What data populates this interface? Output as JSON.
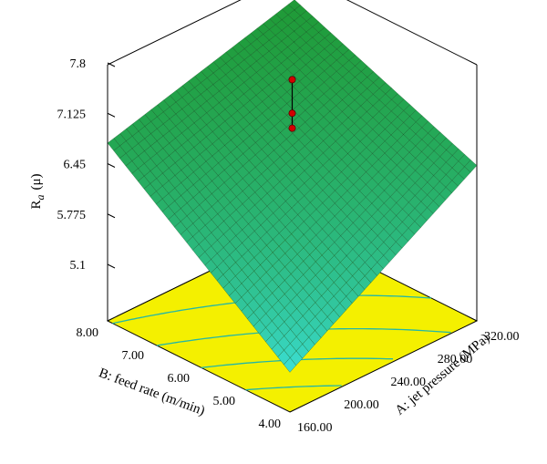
{
  "chart_data": {
    "type": "surface",
    "x_axis": {
      "label": "A: jet pressure (MPa)",
      "ticks": [
        "160.00",
        "200.00",
        "240.00",
        "280.00",
        "320.00"
      ],
      "range": [
        160,
        320
      ]
    },
    "y_axis": {
      "label": "B: feed rate (m/min)",
      "ticks": [
        "4.00",
        "5.00",
        "6.00",
        "7.00",
        "8.00"
      ],
      "range": [
        4,
        8
      ]
    },
    "z_axis": {
      "label_main": "R",
      "label_sub": "a",
      "label_unit": "(μ)",
      "ticks": [
        "5.1",
        "5.775",
        "6.45",
        "7.125",
        "7.8"
      ],
      "range": [
        5.1,
        7.8
      ]
    },
    "surface": {
      "ra_at_A160_B4": 4.9,
      "ra_at_A320_B4": 6.45,
      "ra_at_A160_B8": 6.75,
      "ra_at_A320_B8": 7.45
    },
    "design_points": [
      {
        "A": 240,
        "B": 6,
        "Ra": 7.6
      },
      {
        "A": 240,
        "B": 6,
        "Ra": 7.15
      },
      {
        "A": 240,
        "B": 6,
        "Ra": 6.95
      }
    ],
    "colors": {
      "surface_high": "#1f9a36",
      "surface_low": "#3ee6e6",
      "mesh": "#0b3a14",
      "floor": "#f4f000",
      "contour": "#24b7a6",
      "point": "#d40000"
    }
  }
}
